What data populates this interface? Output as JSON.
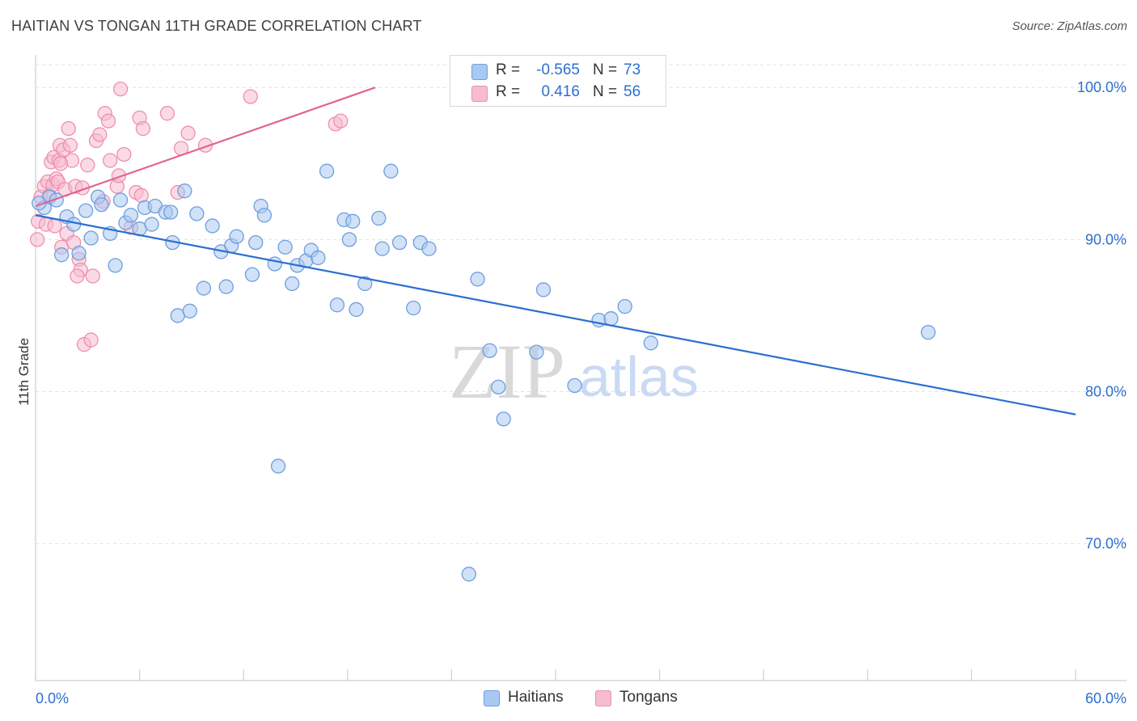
{
  "title": "HAITIAN VS TONGAN 11TH GRADE CORRELATION CHART",
  "source": "Source: ZipAtlas.com",
  "watermark": {
    "zip": "ZIP",
    "atlas": "atlas"
  },
  "colors": {
    "blue_fill": "#a9c8f2",
    "blue_stroke": "#6f9fdc",
    "blue_line": "#2b6fcf",
    "pink_fill": "#f6bcd0",
    "pink_stroke": "#ee8fb0",
    "pink_line": "#e4628f",
    "axis_text": "#2d6fcf",
    "grid": "#e2e2e2"
  },
  "legend": {
    "rows": [
      {
        "r_label": "R =",
        "r_value": "-0.565",
        "n_label": "N =",
        "n_value": "73",
        "swatch": "#a9c8f2",
        "border": "#6f9fdc"
      },
      {
        "r_label": "R =",
        "r_value": "0.416",
        "n_label": "N =",
        "n_value": "56",
        "swatch": "#f6bcd0",
        "border": "#ee8fb0"
      }
    ]
  },
  "bottom_legend": [
    {
      "label": "Haitians",
      "swatch": "#a9c8f2",
      "border": "#6f9fdc"
    },
    {
      "label": "Tongans",
      "swatch": "#f6bcd0",
      "border": "#ee8fb0"
    }
  ],
  "chart_data": {
    "type": "scatter",
    "title": "HAITIAN VS TONGAN 11TH GRADE CORRELATION CHART",
    "xlabel": "",
    "ylabel": "11th Grade",
    "xlim": [
      0,
      60
    ],
    "ylim": [
      61,
      101.5
    ],
    "x_tick_labels": [
      "0.0%",
      "60.0%"
    ],
    "y_ticks": [
      70,
      80,
      90,
      100
    ],
    "y_tick_labels": [
      "70.0%",
      "80.0%",
      "90.0%",
      "100.0%"
    ],
    "series": [
      {
        "name": "Haitians",
        "r": -0.565,
        "n": 73,
        "trend": {
          "x0": 0,
          "y0": 91.6,
          "x1": 60,
          "y1": 78.5
        },
        "points": [
          [
            0.5,
            92.1
          ],
          [
            0.8,
            92.8
          ],
          [
            1.2,
            92.6
          ],
          [
            1.5,
            89.0
          ],
          [
            1.8,
            91.5
          ],
          [
            2.2,
            91.0
          ],
          [
            2.5,
            89.1
          ],
          [
            2.9,
            91.9
          ],
          [
            3.2,
            90.1
          ],
          [
            3.6,
            92.8
          ],
          [
            3.8,
            92.3
          ],
          [
            4.3,
            90.4
          ],
          [
            4.6,
            88.3
          ],
          [
            4.9,
            92.6
          ],
          [
            5.2,
            91.1
          ],
          [
            5.5,
            91.6
          ],
          [
            6.0,
            90.7
          ],
          [
            6.3,
            92.1
          ],
          [
            6.7,
            91.0
          ],
          [
            6.9,
            92.2
          ],
          [
            7.5,
            91.8
          ],
          [
            7.8,
            91.8
          ],
          [
            7.9,
            89.8
          ],
          [
            8.2,
            85.0
          ],
          [
            8.6,
            93.2
          ],
          [
            8.9,
            85.3
          ],
          [
            9.3,
            91.7
          ],
          [
            9.7,
            86.8
          ],
          [
            10.2,
            90.9
          ],
          [
            10.7,
            89.2
          ],
          [
            11.0,
            86.9
          ],
          [
            11.3,
            89.6
          ],
          [
            11.6,
            90.2
          ],
          [
            12.5,
            87.7
          ],
          [
            12.7,
            89.8
          ],
          [
            13.0,
            92.2
          ],
          [
            13.2,
            91.6
          ],
          [
            13.8,
            88.4
          ],
          [
            14.0,
            75.1
          ],
          [
            14.4,
            89.5
          ],
          [
            14.8,
            87.1
          ],
          [
            15.1,
            88.3
          ],
          [
            15.6,
            88.6
          ],
          [
            15.9,
            89.3
          ],
          [
            16.3,
            88.8
          ],
          [
            16.8,
            94.5
          ],
          [
            17.4,
            85.7
          ],
          [
            17.8,
            91.3
          ],
          [
            18.1,
            90.0
          ],
          [
            18.3,
            91.2
          ],
          [
            18.5,
            85.4
          ],
          [
            19.0,
            87.1
          ],
          [
            19.8,
            91.4
          ],
          [
            20.0,
            89.4
          ],
          [
            20.5,
            94.5
          ],
          [
            21.0,
            89.8
          ],
          [
            21.8,
            85.5
          ],
          [
            22.2,
            89.8
          ],
          [
            22.7,
            89.4
          ],
          [
            25.0,
            68.0
          ],
          [
            25.5,
            87.4
          ],
          [
            26.2,
            82.7
          ],
          [
            26.7,
            80.3
          ],
          [
            27.0,
            78.2
          ],
          [
            28.9,
            82.6
          ],
          [
            29.3,
            86.7
          ],
          [
            31.1,
            80.4
          ],
          [
            32.5,
            84.7
          ],
          [
            33.2,
            84.8
          ],
          [
            34.0,
            85.6
          ],
          [
            35.5,
            83.2
          ],
          [
            51.5,
            83.9
          ],
          [
            0.2,
            92.4
          ]
        ]
      },
      {
        "name": "Tongans",
        "r": 0.416,
        "n": 56,
        "trend": {
          "x0": 0,
          "y0": 92.2,
          "x1": 19.6,
          "y1": 100.0
        },
        "points": [
          [
            0.1,
            90.0
          ],
          [
            0.15,
            91.2
          ],
          [
            0.3,
            92.8
          ],
          [
            0.5,
            93.5
          ],
          [
            0.6,
            91.0
          ],
          [
            0.7,
            93.8
          ],
          [
            0.8,
            92.9
          ],
          [
            0.9,
            95.1
          ],
          [
            1.0,
            93.6
          ],
          [
            1.05,
            95.4
          ],
          [
            1.1,
            90.9
          ],
          [
            1.2,
            94.0
          ],
          [
            1.3,
            93.8
          ],
          [
            1.35,
            95.2
          ],
          [
            1.4,
            96.2
          ],
          [
            1.5,
            89.5
          ],
          [
            1.6,
            95.9
          ],
          [
            1.7,
            93.3
          ],
          [
            1.8,
            90.4
          ],
          [
            1.9,
            97.3
          ],
          [
            2.0,
            96.2
          ],
          [
            2.1,
            95.2
          ],
          [
            2.2,
            89.8
          ],
          [
            2.3,
            93.5
          ],
          [
            2.5,
            88.7
          ],
          [
            2.6,
            88.0
          ],
          [
            2.7,
            93.4
          ],
          [
            2.8,
            83.1
          ],
          [
            3.0,
            94.9
          ],
          [
            3.2,
            83.4
          ],
          [
            3.3,
            87.6
          ],
          [
            3.5,
            96.5
          ],
          [
            3.7,
            96.9
          ],
          [
            3.9,
            92.5
          ],
          [
            4.0,
            98.3
          ],
          [
            4.2,
            97.8
          ],
          [
            4.3,
            95.2
          ],
          [
            4.7,
            93.5
          ],
          [
            4.8,
            94.2
          ],
          [
            4.9,
            99.9
          ],
          [
            5.1,
            95.6
          ],
          [
            5.5,
            90.8
          ],
          [
            5.8,
            93.1
          ],
          [
            6.0,
            98.0
          ],
          [
            6.2,
            97.3
          ],
          [
            6.1,
            92.9
          ],
          [
            7.6,
            98.3
          ],
          [
            8.2,
            93.1
          ],
          [
            8.4,
            96.0
          ],
          [
            8.8,
            97.0
          ],
          [
            9.8,
            96.2
          ],
          [
            12.4,
            99.4
          ],
          [
            17.3,
            97.6
          ],
          [
            17.6,
            97.8
          ],
          [
            1.45,
            95.0
          ],
          [
            2.4,
            87.6
          ]
        ]
      }
    ]
  }
}
